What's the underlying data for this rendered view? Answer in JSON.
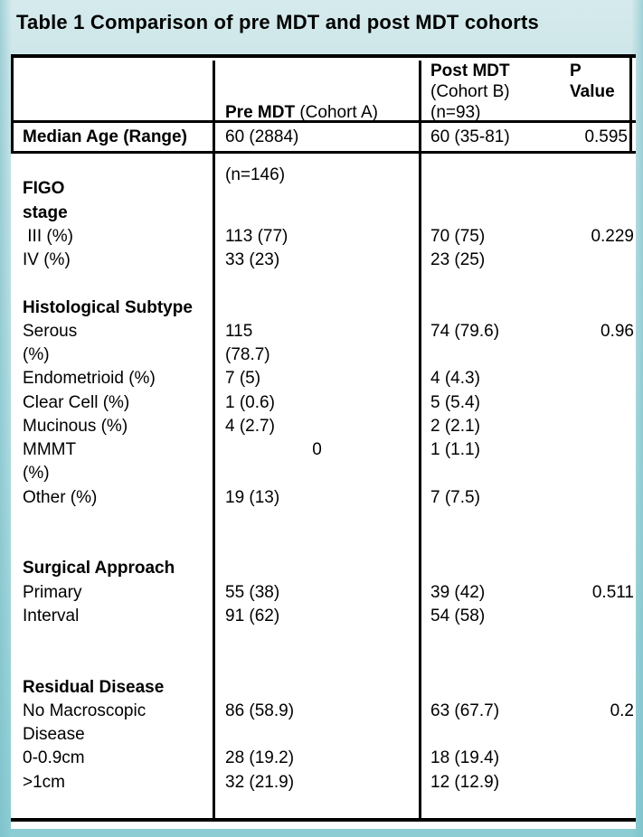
{
  "title": "Table 1 Comparison of pre MDT and post MDT cohorts",
  "colors": {
    "background_top": "#cde6e9",
    "background_bottom": "#8ccdd4",
    "table_background": "#ffffff",
    "border": "#000000",
    "text": "#000000"
  },
  "table": {
    "header": {
      "col1": "",
      "pre": {
        "bold": "Pre MDT",
        "rest": " (Cohort A)",
        "line2": "(n=146)"
      },
      "post": {
        "bold": "Post MDT",
        "line2": "(Cohort B)",
        "line3": "(n=93)"
      },
      "p": {
        "line1": "P",
        "line2": "Value"
      }
    },
    "median_row": {
      "label": "Median Age (Range)",
      "pre": "60 (2884)",
      "post": "60 (35-81)",
      "p": "0.595"
    },
    "body_lines": [
      {
        "label": "",
        "pre": "",
        "post": "",
        "p": ""
      },
      {
        "label": "FIGO",
        "bold": true
      },
      {
        "label": "stage",
        "bold": true
      },
      {
        "label": " III (%)",
        "pre": "113 (77)",
        "post": "70 (75)",
        "p": "0.229"
      },
      {
        "label": "IV (%)",
        "pre": "33 (23)",
        "post": "23 (25)"
      },
      {
        "label": ""
      },
      {
        "label": "Histological Subtype",
        "bold": true
      },
      {
        "label": "Serous",
        "pre": "115",
        "post": "74 (79.6)",
        "p": "0.96"
      },
      {
        "label": "(%)",
        "pre": "(78.7)"
      },
      {
        "label": "Endometrioid (%)",
        "pre": "7 (5)",
        "post": "4 (4.3)"
      },
      {
        "label": "Clear Cell (%)",
        "pre": "1 (0.6)",
        "post": "5 (5.4)"
      },
      {
        "label": "Mucinous (%)",
        "pre": "4 (2.7)",
        "post": "2 (2.1)"
      },
      {
        "label": "MMMT",
        "pre": "0",
        "pre_center": true,
        "post": "1 (1.1)"
      },
      {
        "label": "(%)"
      },
      {
        "label": "Other (%)",
        "pre": "19 (13)",
        "post": "7 (7.5)"
      },
      {
        "label": ""
      },
      {
        "label": ""
      },
      {
        "label": "Surgical Approach",
        "bold": true
      },
      {
        "label": "Primary",
        "pre": "55 (38)",
        "post": "39 (42)",
        "p": "0.511"
      },
      {
        "label": "Interval",
        "pre": "91 (62)",
        "post": "54 (58)"
      },
      {
        "label": ""
      },
      {
        "label": ""
      },
      {
        "label": "Residual Disease",
        "bold": true
      },
      {
        "label": "No Macroscopic",
        "pre": "86 (58.9)",
        "post": "63 (67.7)",
        "p": "0.2"
      },
      {
        "label": "Disease"
      },
      {
        "label": "0-0.9cm",
        "pre": "28 (19.2)",
        "post": "18 (19.4)"
      },
      {
        "label": ">1cm",
        "pre": "32 (21.9)",
        "post": "12 (12.9)"
      },
      {
        "label": ""
      }
    ]
  }
}
